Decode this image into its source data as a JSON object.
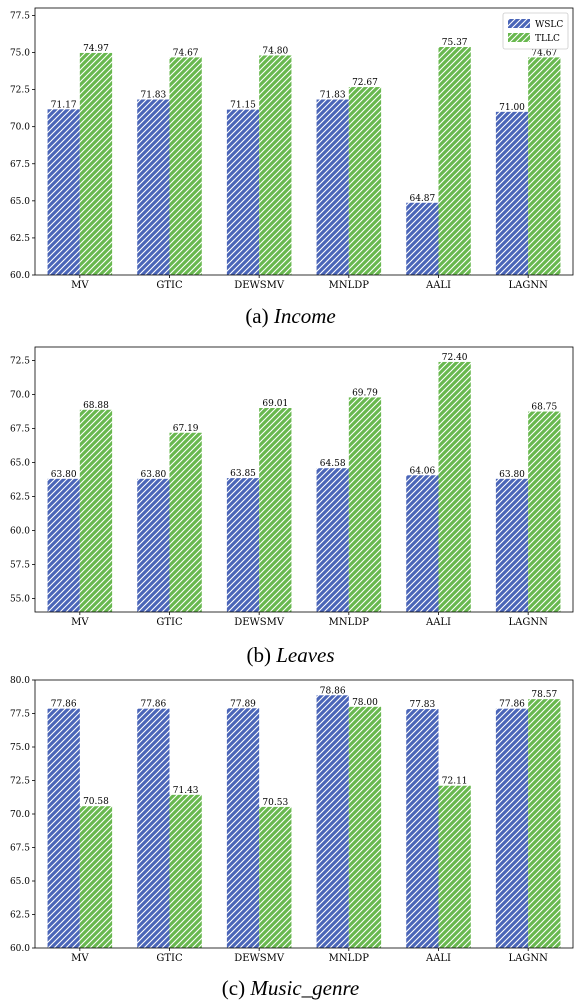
{
  "legend": {
    "placement": "top-right",
    "entries": [
      "WSLC",
      "TLLC"
    ]
  },
  "colors": {
    "WSLC": "#4a65b8",
    "TLLC": "#68b84e"
  },
  "chart_data": [
    {
      "type": "bar",
      "caption_label": "(a)",
      "caption_name": "Income",
      "categories": [
        "MV",
        "GTIC",
        "DEWSMV",
        "MNLDP",
        "AALI",
        "LAGNN"
      ],
      "series": [
        {
          "name": "WSLC",
          "values": [
            71.17,
            71.83,
            71.15,
            71.83,
            64.87,
            71.0
          ]
        },
        {
          "name": "TLLC",
          "values": [
            74.97,
            74.67,
            74.8,
            72.67,
            75.37,
            74.67
          ]
        }
      ],
      "ylim": [
        60.0,
        78.0
      ],
      "yticks": [
        60.0,
        62.5,
        65.0,
        67.5,
        70.0,
        72.5,
        75.0,
        77.5
      ],
      "legend": true,
      "grid": false
    },
    {
      "type": "bar",
      "caption_label": "(b)",
      "caption_name": "Leaves",
      "categories": [
        "MV",
        "GTIC",
        "DEWSMV",
        "MNLDP",
        "AALI",
        "LAGNN"
      ],
      "series": [
        {
          "name": "WSLC",
          "values": [
            63.8,
            63.8,
            63.85,
            64.58,
            64.06,
            63.8
          ]
        },
        {
          "name": "TLLC",
          "values": [
            68.88,
            67.19,
            69.01,
            69.79,
            72.4,
            68.75
          ]
        }
      ],
      "ylim": [
        54.0,
        73.5
      ],
      "yticks": [
        55.0,
        57.5,
        60.0,
        62.5,
        65.0,
        67.5,
        70.0,
        72.5
      ],
      "legend": false,
      "grid": false
    },
    {
      "type": "bar",
      "caption_label": "(c)",
      "caption_name": "Music_genre",
      "categories": [
        "MV",
        "GTIC",
        "DEWSMV",
        "MNLDP",
        "AALI",
        "LAGNN"
      ],
      "series": [
        {
          "name": "WSLC",
          "values": [
            77.86,
            77.86,
            77.89,
            78.86,
            77.83,
            77.86
          ]
        },
        {
          "name": "TLLC",
          "values": [
            70.58,
            71.43,
            70.53,
            78.0,
            72.11,
            78.57
          ]
        }
      ],
      "ylim": [
        60.0,
        80.0
      ],
      "yticks": [
        60.0,
        62.5,
        65.0,
        67.5,
        70.0,
        72.5,
        75.0,
        77.5,
        80.0
      ],
      "legend": false,
      "grid": false
    }
  ]
}
